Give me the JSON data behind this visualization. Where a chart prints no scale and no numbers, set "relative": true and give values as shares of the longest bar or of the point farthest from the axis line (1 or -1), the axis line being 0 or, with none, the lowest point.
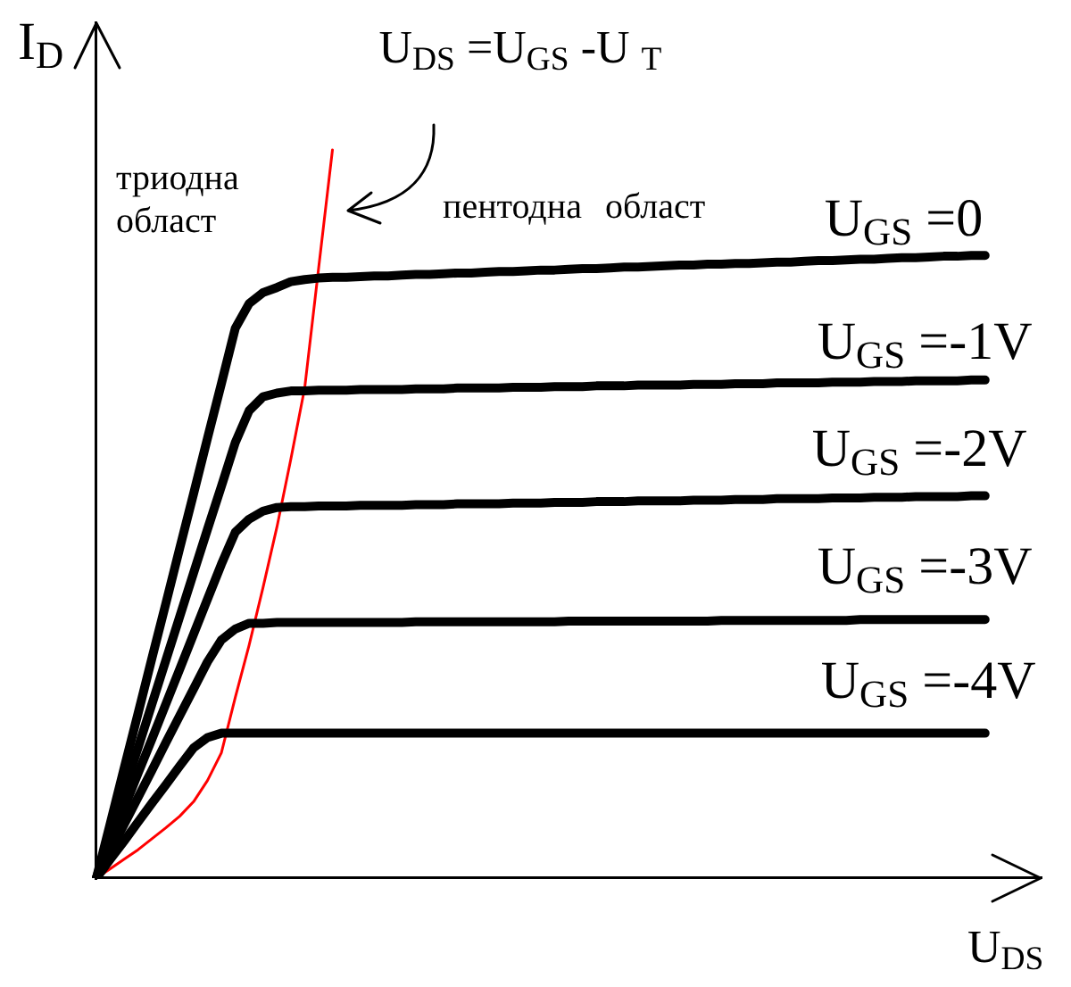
{
  "chart_data": {
    "type": "line",
    "relative": true,
    "xlabel": "U$_{DS}$",
    "ylabel": "I$_{D}$",
    "annotations": [
      "триодна област",
      "пентодна област"
    ],
    "categories": [
      null,
      null,
      null,
      null,
      null,
      null,
      null,
      null,
      null,
      null,
      null,
      null,
      null,
      null,
      null,
      null,
      null,
      null,
      null,
      null,
      null,
      null,
      null,
      null,
      null,
      null,
      null,
      null,
      null,
      null,
      null,
      null,
      null,
      null,
      null,
      null,
      null,
      null,
      null,
      null,
      null,
      null,
      null,
      null,
      null,
      null,
      null,
      null,
      null,
      null,
      null,
      null,
      null,
      null,
      null,
      null,
      null,
      null,
      null,
      null,
      null,
      null,
      null,
      null,
      null,
      null,
      null,
      null,
      null
    ],
    "series": [
      {
        "name": "U$_{GS}$ =0",
        "color": "#000000",
        "values": [
          0,
          0.075,
          0.151,
          0.226,
          0.302,
          0.377,
          0.453,
          0.528,
          0.604,
          0.679,
          0.755,
          0.789,
          0.804,
          0.811,
          0.819,
          0.822,
          0.824,
          0.825,
          0.825,
          0.826,
          0.827,
          0.827,
          0.828,
          0.829,
          0.829,
          0.83,
          0.831,
          0.831,
          0.832,
          0.833,
          0.833,
          0.834,
          0.835,
          0.835,
          0.836,
          0.837,
          0.837,
          0.838,
          0.839,
          0.839,
          0.84,
          0.841,
          0.842,
          0.842,
          0.843,
          0.843,
          0.844,
          0.844,
          0.845,
          0.846,
          0.846,
          0.847,
          0.848,
          0.848,
          0.849,
          0.85,
          0.85,
          0.851,
          0.852,
          0.852,
          0.853,
          0.854,
          0.854,
          0.855,
          0.855,
          null,
          null,
          null,
          null
        ]
      },
      {
        "name": "U$_{GS}$ =-1V",
        "color": "#000000",
        "values": [
          0,
          0.06,
          0.12,
          0.179,
          0.239,
          0.299,
          0.359,
          0.419,
          0.479,
          0.538,
          0.598,
          0.642,
          0.661,
          0.666,
          0.669,
          0.669,
          0.67,
          0.67,
          0.67,
          0.671,
          0.671,
          0.671,
          0.671,
          0.672,
          0.672,
          0.672,
          0.673,
          0.673,
          0.673,
          0.673,
          0.674,
          0.674,
          0.674,
          0.675,
          0.675,
          0.675,
          0.676,
          0.676,
          0.676,
          0.677,
          0.677,
          0.677,
          0.677,
          0.678,
          0.678,
          0.678,
          0.679,
          0.679,
          0.679,
          0.68,
          0.68,
          0.68,
          0.68,
          0.681,
          0.681,
          0.681,
          0.682,
          0.682,
          0.682,
          0.683,
          0.683,
          0.683,
          0.683,
          0.684,
          0.684,
          null,
          null,
          null,
          null
        ]
      },
      {
        "name": "U$_{GS}$ =-2V",
        "color": "#000000",
        "values": [
          0,
          0.048,
          0.096,
          0.144,
          0.191,
          0.239,
          0.287,
          0.335,
          0.383,
          0.431,
          0.475,
          0.493,
          0.504,
          0.509,
          0.51,
          0.51,
          0.511,
          0.511,
          0.511,
          0.512,
          0.512,
          0.512,
          0.512,
          0.513,
          0.513,
          0.513,
          0.514,
          0.514,
          0.514,
          0.514,
          0.515,
          0.515,
          0.515,
          0.516,
          0.516,
          0.516,
          0.517,
          0.517,
          0.517,
          0.518,
          0.518,
          0.518,
          0.518,
          0.519,
          0.519,
          0.519,
          0.52,
          0.52,
          0.52,
          0.521,
          0.521,
          0.521,
          0.521,
          0.522,
          0.522,
          0.522,
          0.523,
          0.523,
          0.523,
          0.524,
          0.524,
          0.524,
          0.524,
          0.525,
          0.525,
          null,
          null,
          null,
          null
        ]
      },
      {
        "name": "U$_{GS}$ =-3V",
        "color": "#000000",
        "values": [
          0,
          0.037,
          0.074,
          0.111,
          0.148,
          0.186,
          0.223,
          0.26,
          0.297,
          0.327,
          0.342,
          0.35,
          0.35,
          0.351,
          0.351,
          0.351,
          0.351,
          0.351,
          0.351,
          0.351,
          0.351,
          0.351,
          0.351,
          0.352,
          0.352,
          0.352,
          0.352,
          0.352,
          0.352,
          0.352,
          0.352,
          0.352,
          0.352,
          0.352,
          0.353,
          0.353,
          0.353,
          0.353,
          0.353,
          0.353,
          0.353,
          0.353,
          0.353,
          0.353,
          0.353,
          0.354,
          0.354,
          0.354,
          0.354,
          0.354,
          0.354,
          0.354,
          0.354,
          0.354,
          0.354,
          0.355,
          0.355,
          0.355,
          0.355,
          0.355,
          0.355,
          0.355,
          0.355,
          0.355,
          0.355,
          null,
          null,
          null,
          null
        ]
      },
      {
        "name": "U$_{GS}$ =-4V",
        "color": "#000000",
        "values": [
          0,
          0.026,
          0.051,
          0.077,
          0.103,
          0.128,
          0.154,
          0.179,
          0.193,
          0.199,
          0.199,
          0.199,
          0.199,
          0.199,
          0.199,
          0.199,
          0.199,
          0.199,
          0.199,
          0.199,
          0.199,
          0.199,
          0.199,
          0.199,
          0.199,
          0.199,
          0.199,
          0.199,
          0.199,
          0.199,
          0.199,
          0.199,
          0.199,
          0.199,
          0.199,
          0.199,
          0.199,
          0.199,
          0.199,
          0.199,
          0.199,
          0.199,
          0.199,
          0.199,
          0.199,
          0.199,
          0.199,
          0.199,
          0.199,
          0.199,
          0.199,
          0.199,
          0.199,
          0.199,
          0.199,
          0.199,
          0.199,
          0.199,
          0.199,
          0.199,
          0.199,
          0.199,
          0.199,
          0.199,
          0.199,
          null,
          null,
          null,
          null
        ]
      },
      {
        "name": "U$_{DS}$ =U$_{GS}$ -U $_{T}$",
        "color": "#ff0000",
        "values": [
          0,
          0.013,
          0.026,
          0.039,
          0.054,
          0.069,
          0.085,
          0.105,
          0.134,
          0.172,
          0.248,
          0.32,
          0.399,
          0.482,
          0.575,
          0.673,
          0.837,
          1,
          null,
          null,
          null,
          null,
          null,
          null,
          null,
          null,
          null,
          null,
          null,
          null,
          null,
          null,
          null,
          null,
          null,
          null,
          null,
          null,
          null,
          null,
          null,
          null,
          null,
          null,
          null,
          null,
          null,
          null,
          null,
          null,
          null,
          null,
          null,
          null,
          null,
          null,
          null,
          null,
          null,
          null,
          null,
          null,
          null,
          null,
          null,
          null,
          null,
          null,
          null
        ]
      }
    ]
  }
}
